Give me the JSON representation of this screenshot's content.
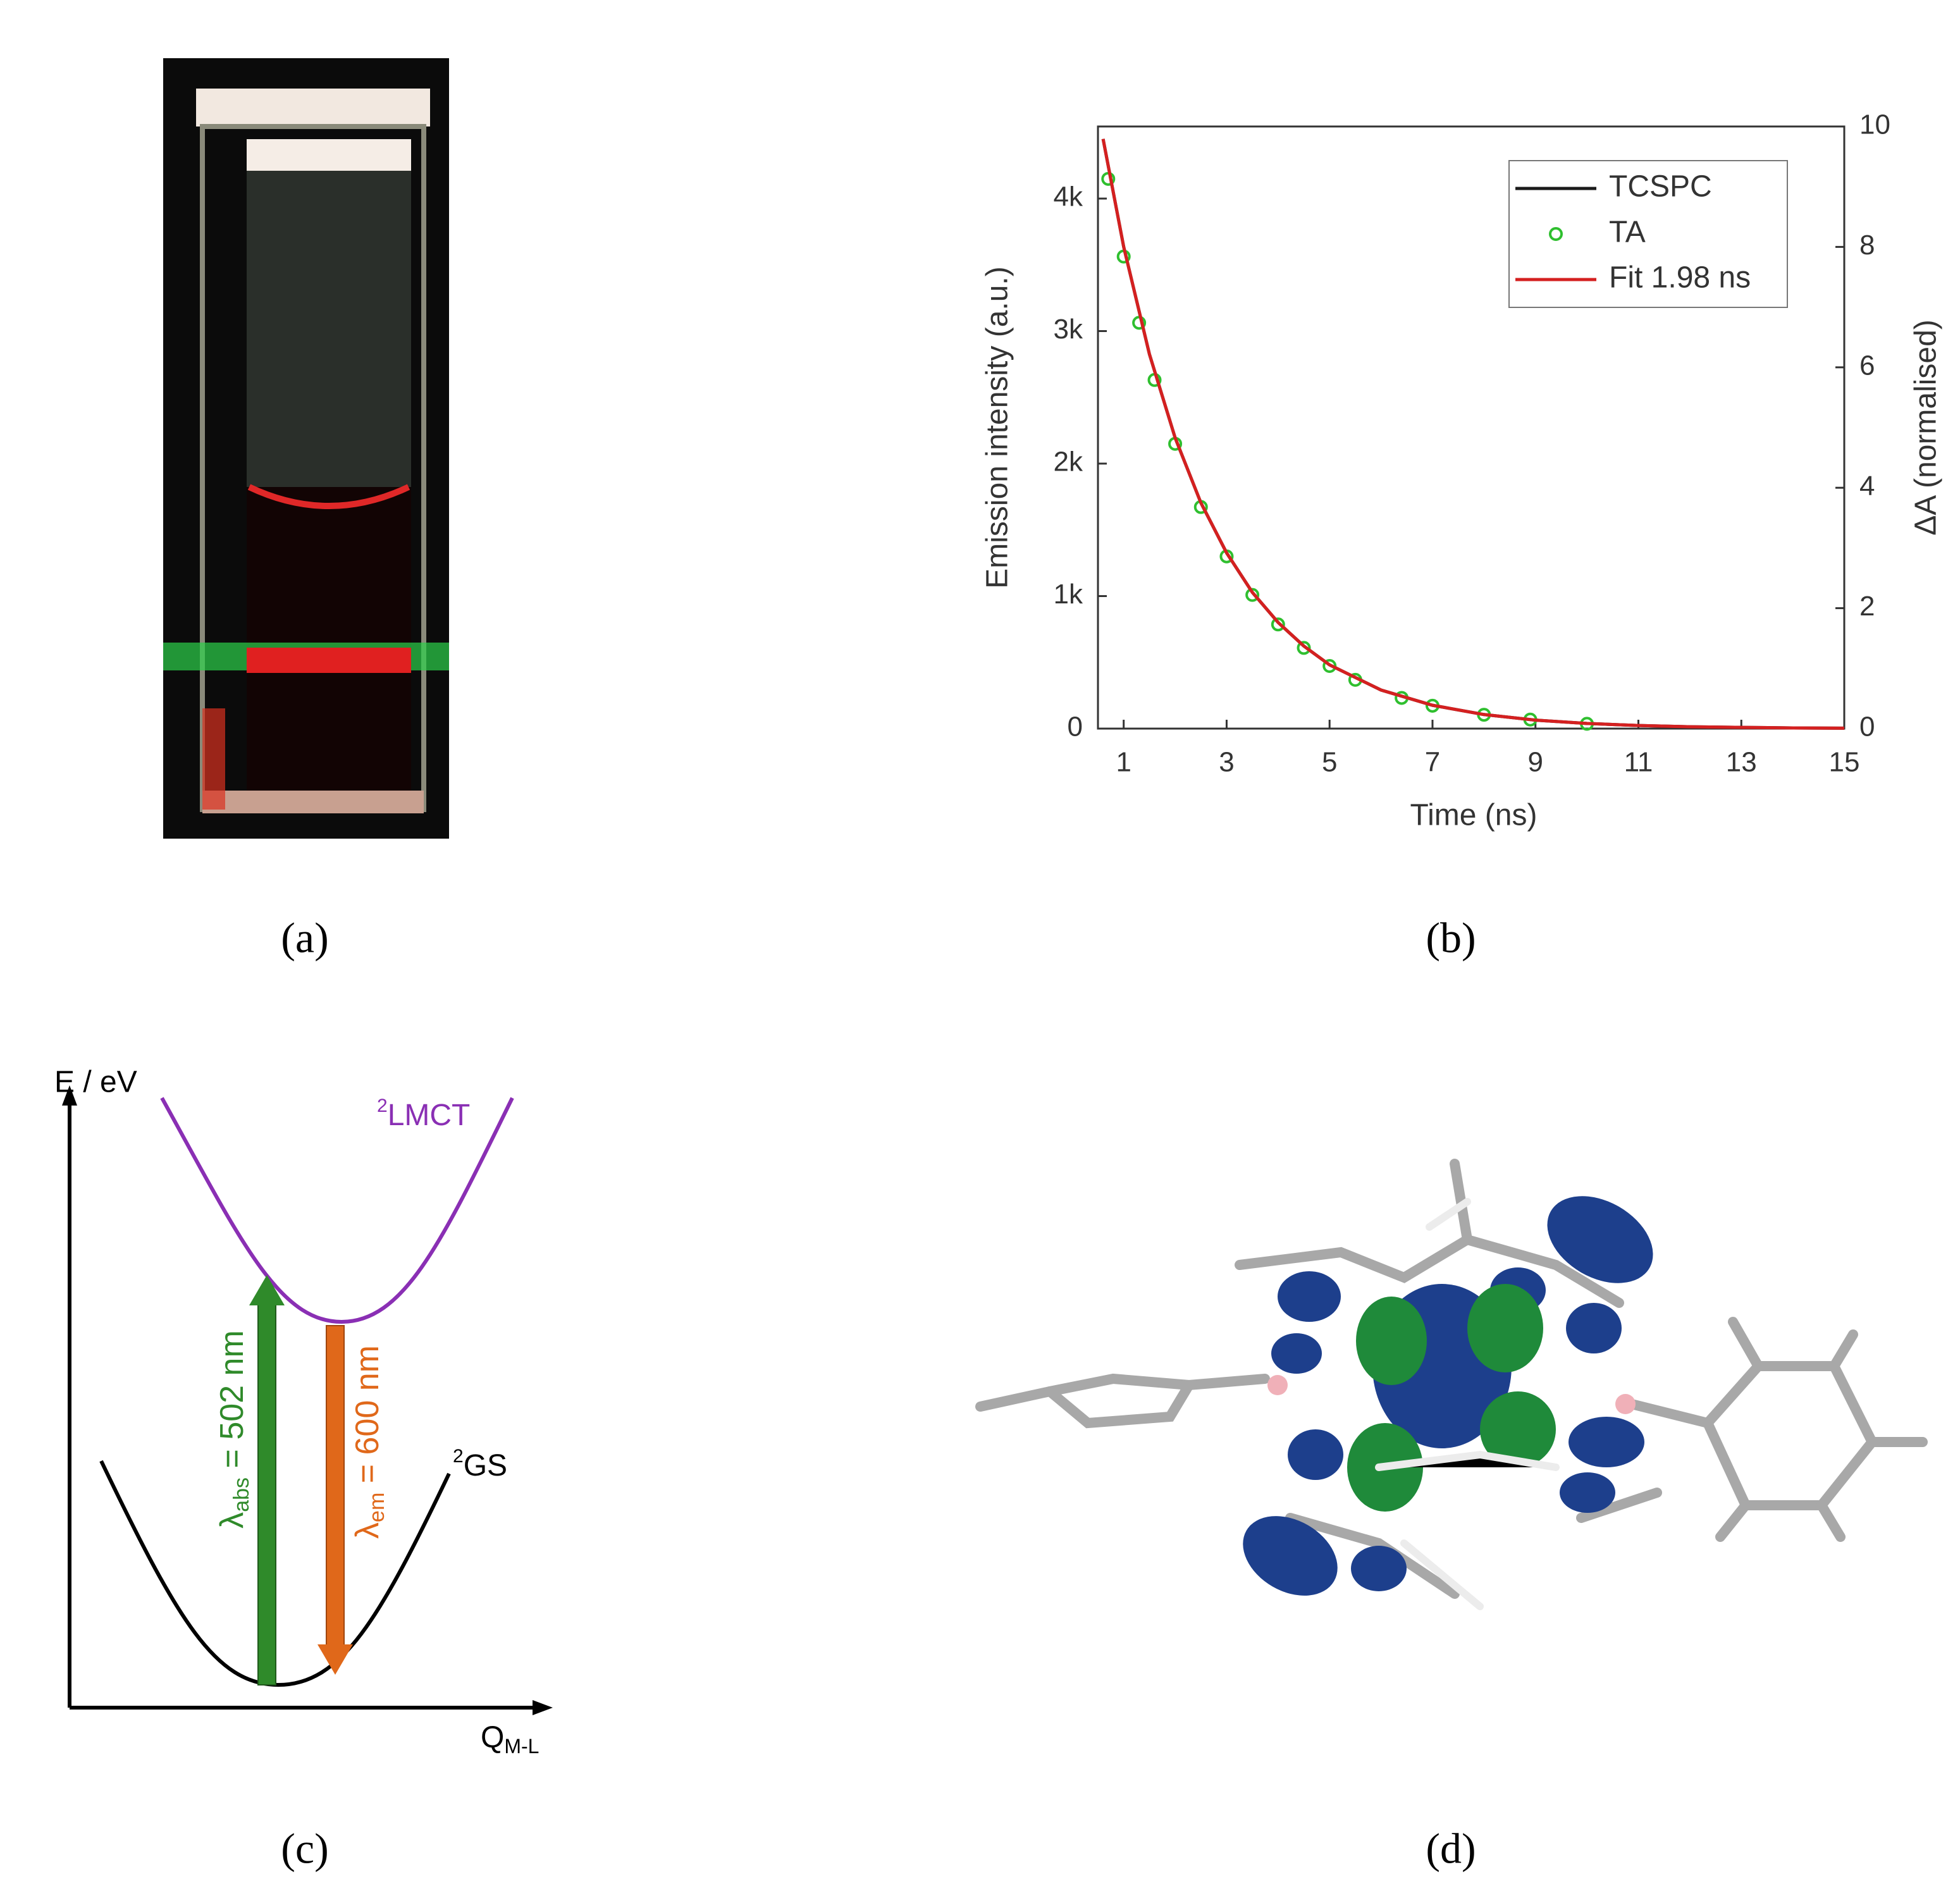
{
  "chart_data": {
    "type": "line",
    "xlabel": "Time (ns)",
    "ylabel": "Emission intensity (a.u.)",
    "y2label": "ΔA (normalised)",
    "xlim": [
      0.5,
      15
    ],
    "xticks": [
      1,
      3,
      5,
      7,
      9,
      11,
      13,
      15
    ],
    "ylim": [
      0,
      4544
    ],
    "yticks": [
      0,
      {
        "value": 1000,
        "label": "1k"
      },
      {
        "value": 2000,
        "label": "2k"
      },
      {
        "value": 3000,
        "label": "3k"
      },
      {
        "value": 4000,
        "label": "4k"
      }
    ],
    "y2lim": [
      0,
      10
    ],
    "y2ticks": [
      0,
      2,
      4,
      6,
      8,
      10
    ],
    "legend": "top-right",
    "series": [
      {
        "name": "TCSPC",
        "color": "#1a1a1a",
        "mark": "line",
        "x": [
          0.6,
          1,
          1.5,
          2,
          2.5,
          3,
          3.5,
          4,
          4.5,
          5,
          6,
          7,
          8,
          9,
          10,
          11,
          12,
          13,
          14,
          15
        ],
        "values": [
          4450,
          3636,
          2826,
          2194,
          1704,
          1326,
          1028,
          801,
          623,
          481,
          291,
          176,
          106,
          64,
          39,
          23,
          14,
          9,
          5,
          3
        ]
      },
      {
        "name": "TA",
        "color": "#2fbf2f",
        "mark": "circle",
        "axis": "y2",
        "x": [
          0.7,
          1,
          1.3,
          1.6,
          2,
          2.5,
          3,
          3.5,
          4,
          4.5,
          5,
          5.5,
          6.4,
          7,
          8,
          8.9,
          10
        ],
        "values": [
          9.13,
          7.84,
          6.74,
          5.79,
          4.73,
          3.68,
          2.86,
          2.22,
          1.73,
          1.34,
          1.04,
          0.81,
          0.51,
          0.38,
          0.23,
          0.15,
          0.08
        ]
      },
      {
        "name": "Fit 1.98 ns",
        "color": "#d42020",
        "mark": "line",
        "x": [
          0.6,
          1,
          1.5,
          2,
          2.5,
          3,
          3.5,
          4,
          4.5,
          5,
          6,
          7,
          8,
          9,
          10,
          11,
          12,
          13,
          14,
          15
        ],
        "values": [
          4450,
          3636,
          2826,
          2194,
          1704,
          1326,
          1028,
          801,
          623,
          481,
          291,
          176,
          106,
          64,
          39,
          23,
          14,
          9,
          5,
          3
        ]
      }
    ]
  },
  "panel_labels": [
    "(a)",
    "(b)",
    "(c)",
    "(d)"
  ],
  "diagram": {
    "y_axis": "E / eV",
    "x_axis": {
      "main": "Q",
      "sub": "M-L"
    },
    "upper_state": {
      "sup": "2",
      "main": "LMCT"
    },
    "ground_state": {
      "sup": "2",
      "main": "GS"
    },
    "absorption": {
      "symbol": "λ",
      "sub": "abs",
      "rest": " = 502 nm"
    },
    "emission": {
      "symbol": "λ",
      "sub": "em",
      "rest": " = 600 nm"
    }
  }
}
